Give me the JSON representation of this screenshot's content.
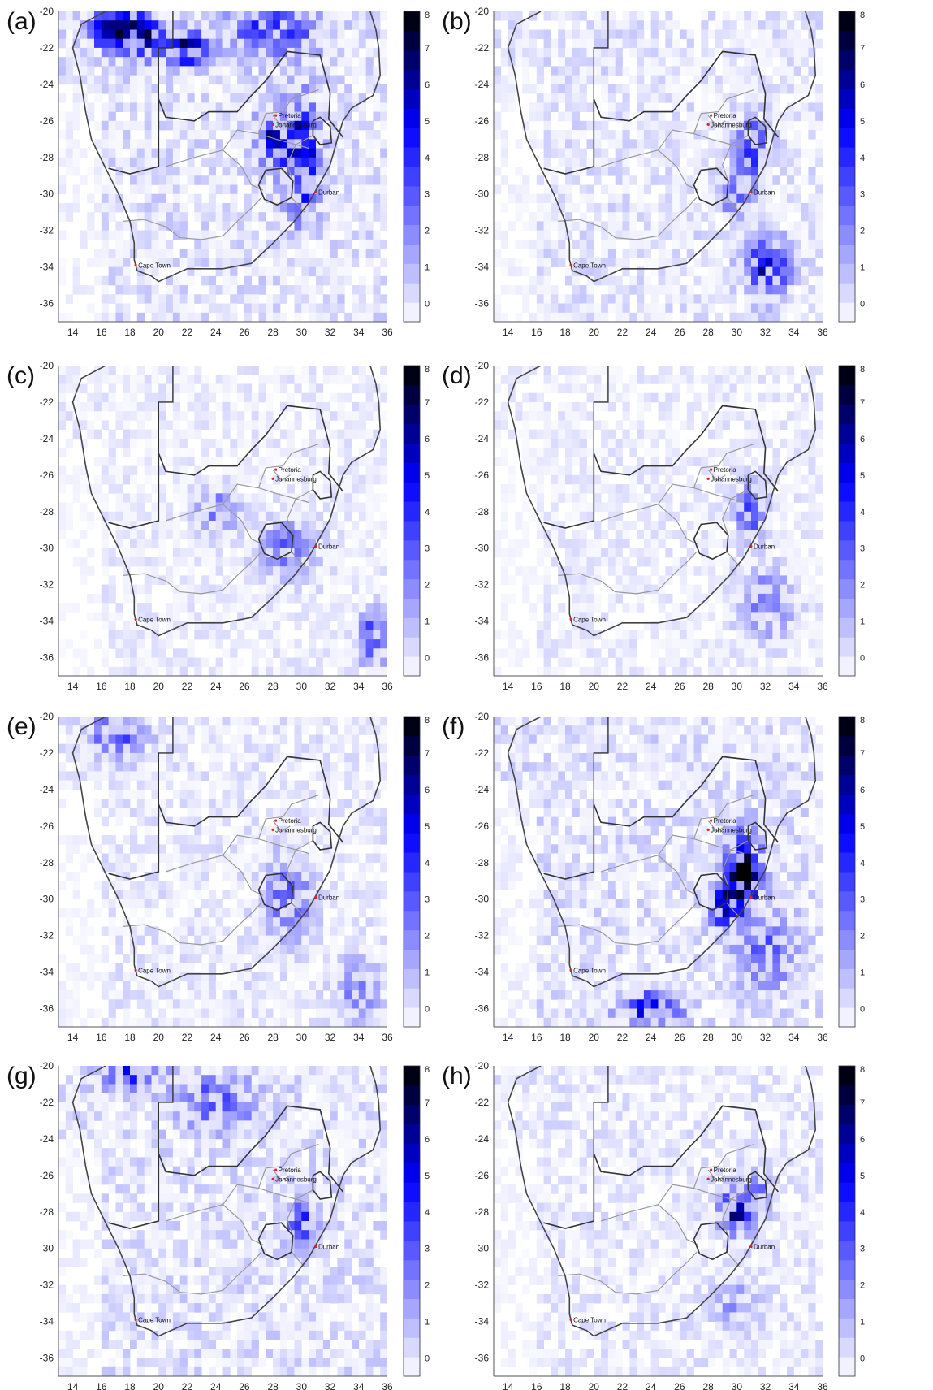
{
  "figure": {
    "panels": [
      {
        "label": "(a)",
        "colorbar_ticks": [
          "0",
          "1",
          "2",
          "3",
          "4",
          "5",
          "6",
          "7",
          "8"
        ],
        "hotspots": [
          [
            17,
            -21,
            8,
            1.6,
            1.0
          ],
          [
            19,
            -21.5,
            6,
            1.5,
            1.2
          ],
          [
            22,
            -22,
            6,
            1.5,
            1.0
          ],
          [
            28,
            -27,
            5,
            1.2,
            1.5
          ],
          [
            30,
            -28,
            6,
            1.2,
            3.0
          ],
          [
            28,
            -21,
            4,
            3,
            1.5
          ]
        ],
        "background": 0.8
      },
      {
        "label": "(b)",
        "colorbar_ticks": [
          "0",
          "1",
          "2",
          "3",
          "4",
          "5",
          "6",
          "7",
          "8"
        ],
        "hotspots": [
          [
            32,
            -34,
            5,
            1.6,
            1.6
          ],
          [
            31,
            -27.5,
            5,
            1.0,
            1.5
          ],
          [
            30,
            -30,
            3,
            1.2,
            1.2
          ]
        ],
        "background": 0.7
      },
      {
        "label": "(c)",
        "colorbar_ticks": [
          "0",
          "1",
          "2",
          "3",
          "4",
          "5",
          "6",
          "7",
          "8"
        ],
        "hotspots": [
          [
            29,
            -30,
            3,
            2.0,
            1.6
          ],
          [
            24,
            -28,
            3,
            1.5,
            1.2
          ],
          [
            35,
            -35,
            4,
            1.0,
            1.5
          ]
        ],
        "background": 0.5
      },
      {
        "label": "(d)",
        "colorbar_ticks": [
          "0",
          "1",
          "2",
          "3",
          "4",
          "5",
          "6",
          "7",
          "8"
        ],
        "hotspots": [
          [
            31,
            -28,
            4,
            1.0,
            1.5
          ],
          [
            32,
            -33,
            2.5,
            2.0,
            2.0
          ]
        ],
        "background": 0.5
      },
      {
        "label": "(e)",
        "colorbar_ticks": [
          "0",
          "1",
          "2",
          "3",
          "4",
          "5",
          "6",
          "7",
          "8"
        ],
        "hotspots": [
          [
            29,
            -30,
            4,
            1.5,
            2.0
          ],
          [
            17,
            -21,
            4,
            2.0,
            1.2
          ],
          [
            34,
            -35,
            3,
            1.5,
            1.5
          ]
        ],
        "background": 0.6
      },
      {
        "label": "(f)",
        "colorbar_ticks": [
          "0",
          "1",
          "2",
          "3",
          "4",
          "5",
          "6",
          "7",
          "8"
        ],
        "hotspots": [
          [
            30.5,
            -28.5,
            8,
            1.2,
            2.0
          ],
          [
            29,
            -30.5,
            6,
            1.0,
            1.2
          ],
          [
            24,
            -36,
            6,
            2.0,
            0.8
          ],
          [
            32,
            -33,
            3,
            2.0,
            2.0
          ]
        ],
        "background": 0.8
      },
      {
        "label": "(g)",
        "colorbar_ticks": [
          "0",
          "1",
          "2",
          "3",
          "4",
          "5",
          "6",
          "7",
          "8"
        ],
        "hotspots": [
          [
            30,
            -28.5,
            5,
            1.0,
            1.0
          ],
          [
            24,
            -22,
            3,
            3,
            1.5
          ],
          [
            18,
            -20.5,
            4,
            2,
            0.8
          ]
        ],
        "background": 0.8
      },
      {
        "label": "(h)",
        "colorbar_ticks": [
          "0",
          "1",
          "2",
          "3",
          "4",
          "5",
          "6",
          "7",
          "8"
        ],
        "hotspots": [
          [
            30,
            -28,
            6,
            1.2,
            1.2
          ],
          [
            31.5,
            -27,
            4,
            0.8,
            1.0
          ],
          [
            30,
            -33,
            2,
            1.5,
            1.5
          ]
        ],
        "background": 0.6
      }
    ],
    "x_ticks": [
      "14",
      "16",
      "18",
      "20",
      "22",
      "24",
      "26",
      "28",
      "30",
      "32",
      "34",
      "36"
    ],
    "y_ticks": [
      "-20",
      "-22",
      "-24",
      "-26",
      "-28",
      "-30",
      "-32",
      "-34",
      "-36"
    ],
    "lon_range": [
      13,
      36
    ],
    "lat_range": [
      -37,
      -20
    ],
    "color_scale": {
      "min": 0,
      "max": 8,
      "low": "#ffffff",
      "mid": "#0000ff",
      "high": "#000000"
    },
    "cities": [
      {
        "name": "Pretoria",
        "lon": 28.2,
        "lat": -25.7
      },
      {
        "name": "Johannesburg",
        "lon": 28.0,
        "lat": -26.2
      },
      {
        "name": "Durban",
        "lon": 31.0,
        "lat": -29.9
      },
      {
        "name": "Cape Town",
        "lon": 18.4,
        "lat": -33.9
      }
    ],
    "colors": {
      "coast": "#444444",
      "border": "#333333",
      "province": "#999999",
      "city_marker": "#dd2222"
    }
  }
}
